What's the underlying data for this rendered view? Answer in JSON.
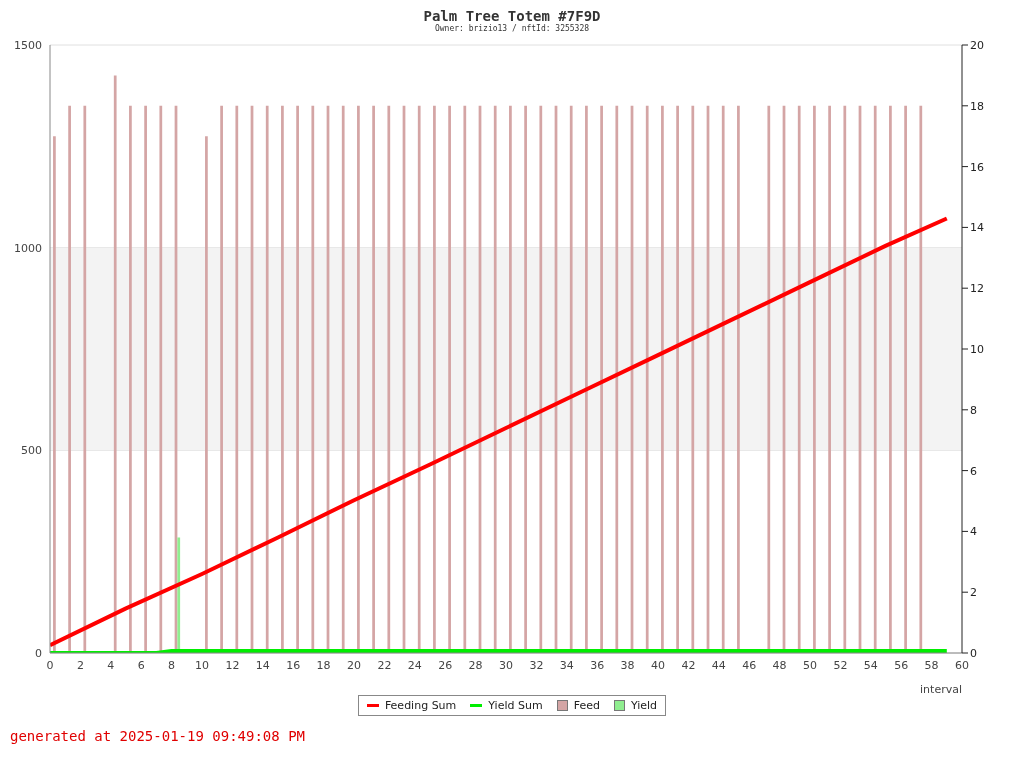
{
  "chart_data": {
    "type": "bar",
    "title": "Palm Tree Totem #7F9D",
    "subtitle": "Owner: brizio13 / nftId: 3255328",
    "xlabel": "interval",
    "x": [
      0.4,
      1.4,
      2.4,
      3.4,
      4.4,
      5.4,
      6.4,
      7.4,
      8.4,
      9.4,
      10.4,
      11.4,
      12.4,
      13.4,
      14.4,
      15.4,
      16.4,
      17.4,
      18.4,
      19.4,
      20.4,
      21.4,
      22.4,
      23.4,
      24.4,
      25.4,
      26.4,
      27.4,
      28.4,
      29.4,
      30.4,
      31.4,
      32.4,
      33.4,
      34.4,
      35.4,
      36.4,
      37.4,
      38.4,
      39.4,
      40.4,
      41.4,
      42.4,
      43.4,
      44.4,
      45.4,
      46.4,
      47.4,
      48.4,
      49.4,
      50.4,
      51.4,
      52.4,
      53.4,
      54.4,
      55.4,
      56.4,
      57.4
    ],
    "series": [
      {
        "name": "Feeding Sum",
        "type": "line",
        "color": "#ff0000",
        "x": [
          0,
          5,
          10,
          15,
          20,
          25,
          30,
          35,
          40,
          45,
          50,
          55,
          59
        ],
        "values": [
          19,
          110,
          195,
          285,
          377,
          465,
          555,
          645,
          735,
          825,
          915,
          1005,
          1072
        ]
      },
      {
        "name": "Yield Sum",
        "type": "line",
        "color": "#00ee00",
        "x": [
          0,
          7,
          8,
          59
        ],
        "values": [
          0,
          0,
          5,
          5
        ]
      },
      {
        "name": "Feed",
        "axis": "y2",
        "color": "#d4a5a5",
        "values": [
          17,
          18,
          18,
          null,
          19,
          18,
          18,
          18,
          18,
          null,
          17,
          18,
          18,
          18,
          18,
          18,
          18,
          18,
          18,
          18,
          18,
          18,
          18,
          18,
          18,
          18,
          18,
          18,
          18,
          18,
          18,
          18,
          18,
          18,
          18,
          18,
          18,
          18,
          18,
          18,
          18,
          18,
          18,
          18,
          18,
          18,
          null,
          18,
          18,
          18,
          18,
          18,
          18,
          18,
          18,
          18,
          18,
          18
        ]
      },
      {
        "name": "Yield",
        "axis": "y2",
        "color": "#90ee90",
        "values": [
          null,
          null,
          null,
          null,
          null,
          null,
          null,
          null,
          3.8,
          null,
          null,
          null,
          null,
          null,
          null,
          null,
          null,
          null,
          null,
          null,
          null,
          null,
          null,
          null,
          null,
          null,
          null,
          null,
          null,
          null,
          null,
          null,
          null,
          null,
          null,
          null,
          null,
          null,
          null,
          null,
          null,
          null,
          null,
          null,
          null,
          null,
          null,
          null,
          null,
          null,
          null,
          null,
          null,
          null,
          null,
          null,
          null,
          null
        ]
      }
    ],
    "xlim": [
      0,
      60
    ],
    "xticks": [
      0,
      2,
      4,
      6,
      8,
      10,
      12,
      14,
      16,
      18,
      20,
      22,
      24,
      26,
      28,
      30,
      32,
      34,
      36,
      38,
      40,
      42,
      44,
      46,
      48,
      50,
      52,
      54,
      56,
      58,
      60
    ],
    "ylim": [
      0,
      1500
    ],
    "yticks": [
      0,
      500,
      1000,
      1500
    ],
    "y2lim": [
      0,
      20
    ],
    "y2ticks": [
      0,
      2,
      4,
      6,
      8,
      10,
      12,
      14,
      16,
      18,
      20
    ],
    "bands": [
      {
        "axis": "y",
        "from": 500,
        "to": 1000,
        "color": "#f3f3f3"
      }
    ],
    "grid": "y",
    "legend": "bottom",
    "annotations": [
      "generated at 2025-01-19 09:49:08 PM"
    ]
  }
}
